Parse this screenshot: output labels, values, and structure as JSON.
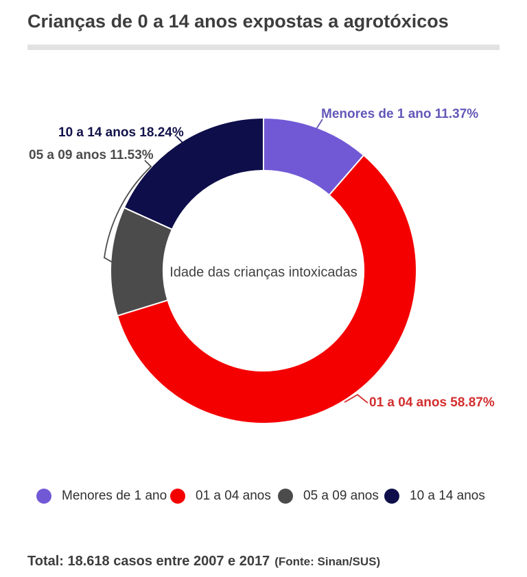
{
  "header": {
    "title": "Crianças de 0 a 14 anos expostas a agrotóxicos",
    "title_color": "#3d3d3d",
    "divider_color": "#e2e2e2"
  },
  "chart_data": {
    "type": "pie",
    "variant": "donut",
    "center_label": "Idade das crianças intoxicadas",
    "categories": [
      "Menores de 1 ano",
      "01 a 04 anos",
      "05 a 09 anos",
      "10 a 14 anos"
    ],
    "values": [
      11.37,
      58.87,
      11.53,
      18.24
    ],
    "unit": "%",
    "colors": [
      "#7159d6",
      "#f50000",
      "#4b4b4b",
      "#0e0e4a"
    ],
    "start_angle_deg": 0,
    "direction": "clockwise",
    "inner_radius_ratio": 0.655,
    "separator_color": "#ffffff",
    "legend_position": "bottom",
    "total_note": "Total: 18.618 casos entre 2007 e 2017",
    "source_note": "(Fonte: Sinan/SUS)"
  },
  "callouts": [
    {
      "text": "Menores de 1 ano 11.37%",
      "color": "#6257b8"
    },
    {
      "text": "01 a 04 anos 58.87%",
      "color": "#d32e2e"
    },
    {
      "text": "05 a 09 anos 11.53%",
      "color": "#4b4b4b"
    },
    {
      "text": "10 a 14 anos 18.24%",
      "color": "#11114a"
    }
  ],
  "legend": {
    "items": [
      {
        "label": "Menores de 1 ano",
        "color": "#7159d6"
      },
      {
        "label": "01 a 04 anos",
        "color": "#f50000"
      },
      {
        "label": "05 a 09 anos",
        "color": "#4b4b4b"
      },
      {
        "label": "10 a 14 anos",
        "color": "#0e0e4a"
      }
    ]
  },
  "footer": {
    "total": "Total: 18.618 casos entre 2007 e 2017",
    "source": "(Fonte: Sinan/SUS)"
  }
}
